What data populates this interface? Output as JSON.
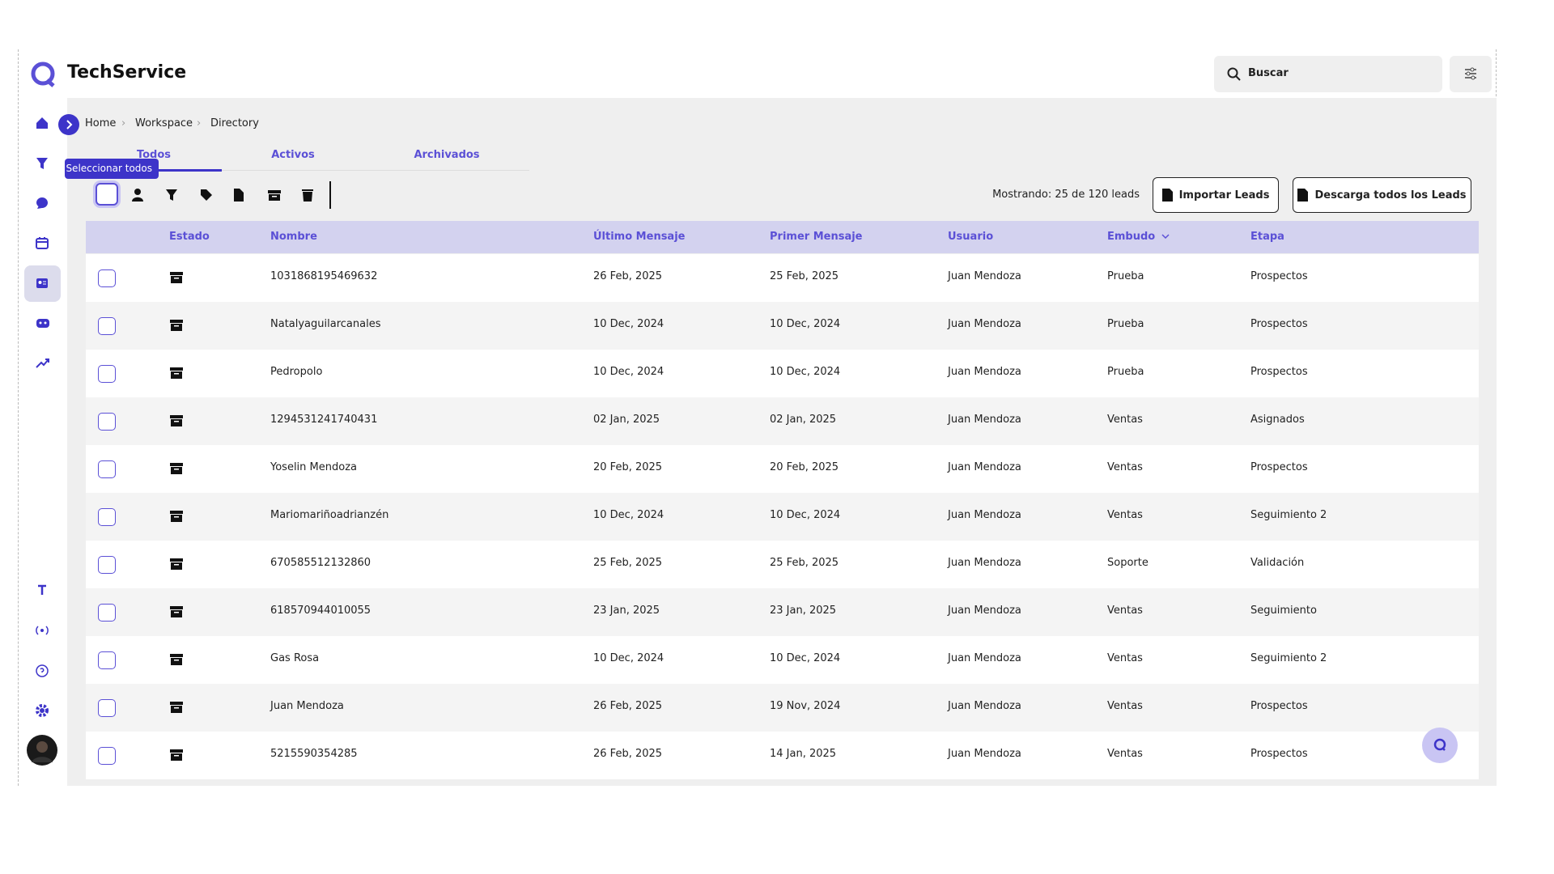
{
  "header": {
    "brand": "TechService",
    "search_placeholder": "Buscar"
  },
  "breadcrumb": [
    "Home",
    "Workspace",
    "Directory"
  ],
  "tabs": [
    "Todos",
    "Activos",
    "Archivados"
  ],
  "tooltip": "Seleccionar todos",
  "showing": "Mostrando: 25 de 120 leads",
  "buttons": [
    "Importar Leads",
    "Descarga todos los Leads"
  ],
  "table": {
    "columns": [
      "Estado",
      "Nombre",
      "Último Mensaje",
      "Primer Mensaje",
      "Usuario",
      "Embudo",
      "Etapa"
    ],
    "rows": [
      [
        "1031868195469632",
        "26 Feb, 2025",
        "25 Feb, 2025",
        "Juan Mendoza",
        "Prueba",
        "Prospectos"
      ],
      [
        "Natalyaguilarcanales",
        "10 Dec, 2024",
        "10 Dec, 2024",
        "Juan Mendoza",
        "Prueba",
        "Prospectos"
      ],
      [
        "Pedropolo",
        "10 Dec, 2024",
        "10 Dec, 2024",
        "Juan Mendoza",
        "Prueba",
        "Prospectos"
      ],
      [
        "1294531241740431",
        "02 Jan, 2025",
        "02 Jan, 2025",
        "Juan Mendoza",
        "Ventas",
        "Asignados"
      ],
      [
        "Yoselin Mendoza",
        "20 Feb, 2025",
        "20 Feb, 2025",
        "Juan Mendoza",
        "Ventas",
        "Prospectos"
      ],
      [
        "Mariomariñoadrianzén",
        "10 Dec, 2024",
        "10 Dec, 2024",
        "Juan Mendoza",
        "Ventas",
        "Seguimiento 2"
      ],
      [
        "670585512132860",
        "25 Feb, 2025",
        "25 Feb, 2025",
        "Juan Mendoza",
        "Soporte",
        "Validación"
      ],
      [
        "618570944010055",
        "23 Jan, 2025",
        "23 Jan, 2025",
        "Juan Mendoza",
        "Ventas",
        "Seguimiento"
      ],
      [
        "Gas Rosa",
        "10 Dec, 2024",
        "10 Dec, 2024",
        "Juan Mendoza",
        "Ventas",
        "Seguimiento 2"
      ],
      [
        "Juan Mendoza",
        "26 Feb, 2025",
        "19 Nov, 2024",
        "Juan Mendoza",
        "Ventas",
        "Prospectos"
      ],
      [
        "5215590354285",
        "26 Feb, 2025",
        "14 Jan, 2025",
        "Juan Mendoza",
        "Ventas",
        "Prospectos"
      ]
    ]
  }
}
